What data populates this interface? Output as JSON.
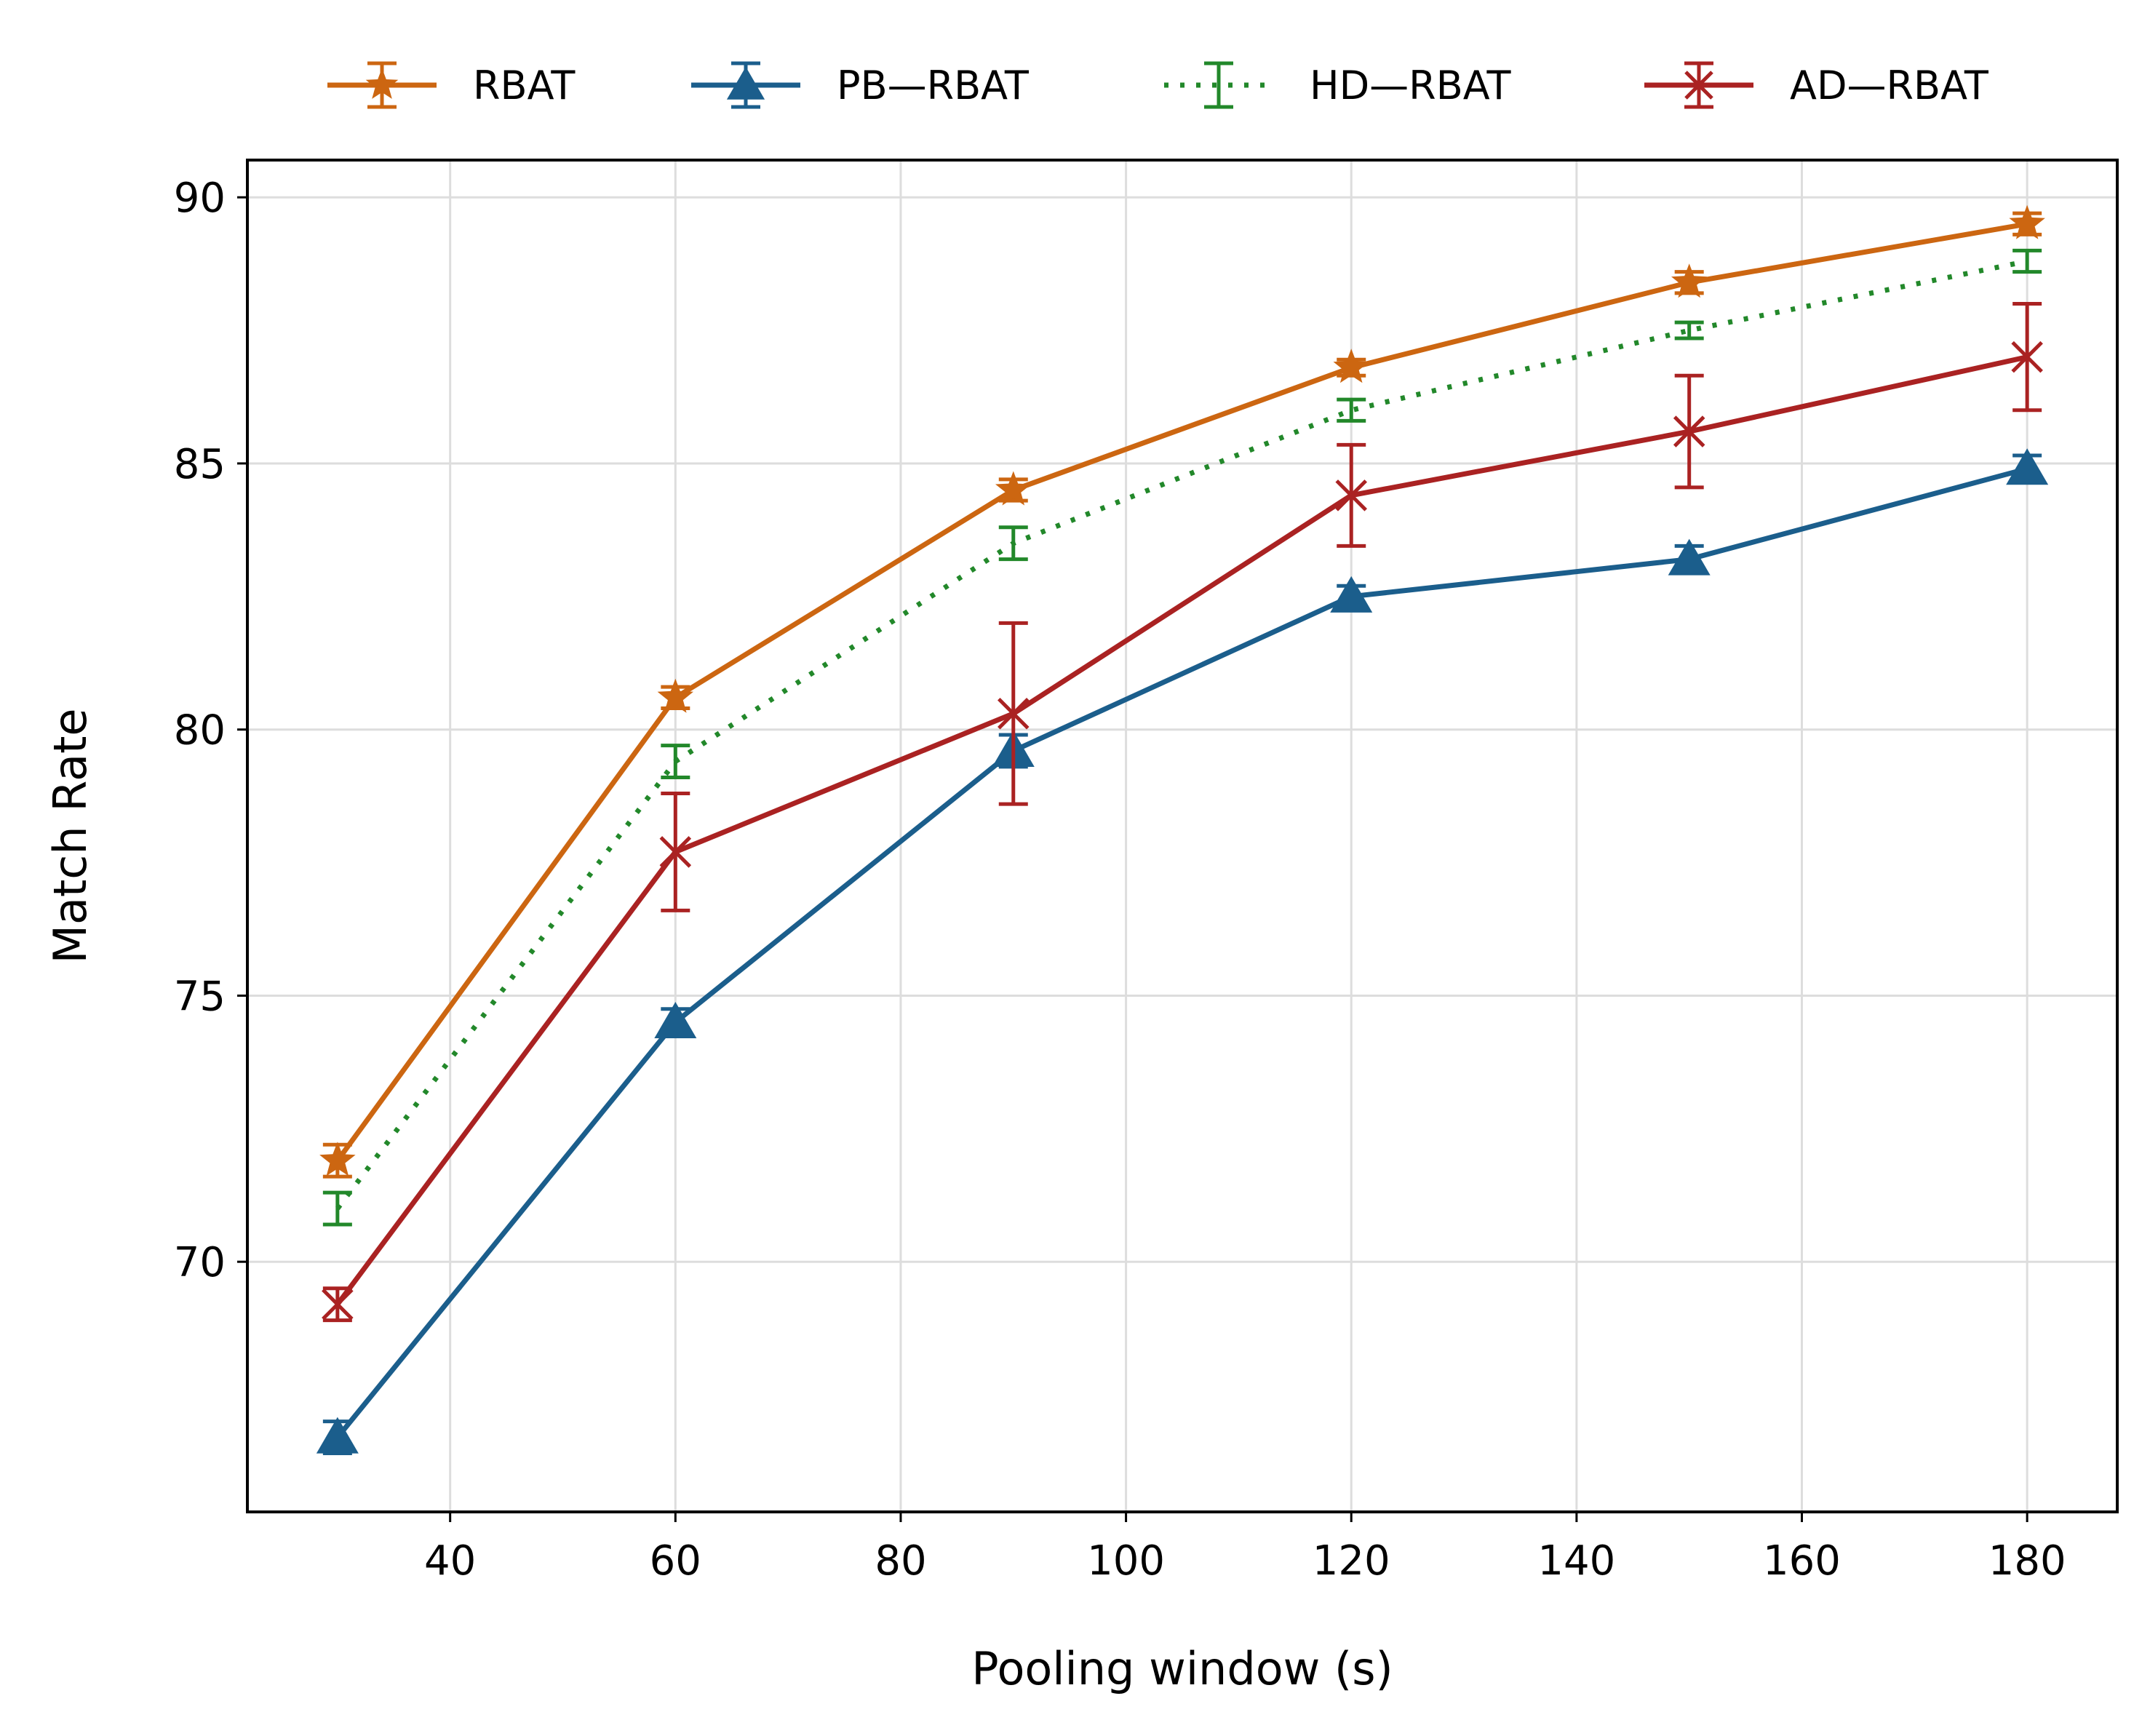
{
  "chart_data": {
    "type": "line",
    "title": "",
    "xlabel": "Pooling window (s)",
    "ylabel": "Match Rate",
    "xlim": [
      22,
      188
    ],
    "ylim": [
      65.3,
      90.7
    ],
    "xticks": [
      40,
      60,
      80,
      100,
      120,
      140,
      160,
      180
    ],
    "yticks": [
      70,
      75,
      80,
      85,
      90
    ],
    "grid": true,
    "legend_position": "top, outside plot area",
    "x": [
      30,
      60,
      90,
      120,
      150,
      180
    ],
    "series": [
      {
        "name": "RBAT",
        "color": "#cc6611",
        "marker": "star",
        "linestyle": "solid",
        "values": [
          71.9,
          80.6,
          84.5,
          86.8,
          88.4,
          89.5
        ],
        "errors": [
          0.3,
          0.2,
          0.2,
          0.15,
          0.2,
          0.2
        ]
      },
      {
        "name": "PB—RBAT",
        "color": "#1b5e8c",
        "marker": "triangle",
        "linestyle": "solid",
        "values": [
          66.7,
          74.5,
          79.6,
          82.5,
          83.2,
          84.9
        ],
        "errors": [
          0.3,
          0.25,
          0.3,
          0.2,
          0.25,
          0.25
        ]
      },
      {
        "name": "HD—RBAT",
        "color": "#22882a",
        "marker": "none",
        "linestyle": "dotted",
        "values": [
          71.0,
          79.4,
          83.5,
          86.0,
          87.5,
          88.8
        ],
        "errors": [
          0.3,
          0.3,
          0.3,
          0.2,
          0.15,
          0.2
        ]
      },
      {
        "name": "AD—RBAT",
        "color": "#aa2222",
        "marker": "x",
        "linestyle": "solid",
        "values": [
          69.2,
          77.7,
          80.3,
          84.4,
          85.6,
          87.0
        ],
        "errors": [
          0.3,
          1.1,
          1.7,
          0.95,
          1.05,
          1.0
        ]
      }
    ]
  }
}
